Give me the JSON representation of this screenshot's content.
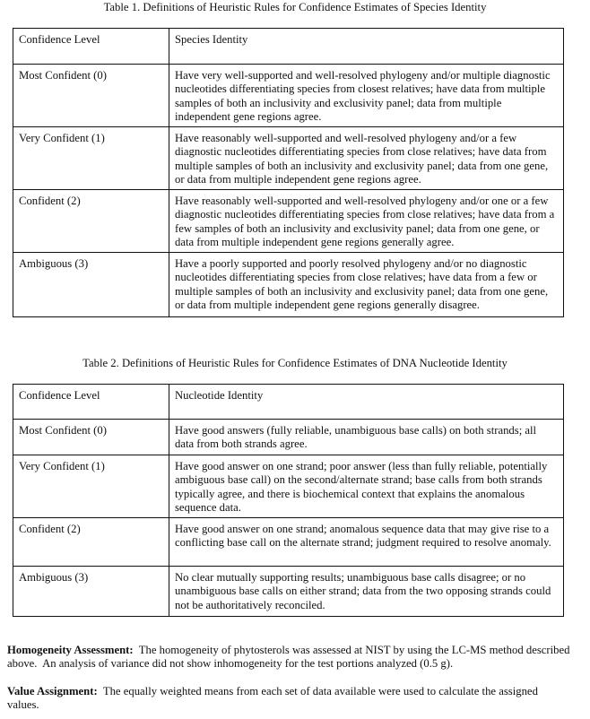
{
  "table1": {
    "caption": "Table 1.  Definitions of Heuristic Rules for Confidence Estimates of Species Identity",
    "headers": [
      "Confidence Level",
      "Species Identity"
    ],
    "rows": [
      [
        "Most Confident (0)",
        "Have very well-supported and well-resolved phylogeny and/or multiple diagnostic nucleotides differentiating species from closest relatives; have data from multiple samples of both an inclusivity and exclusivity panel; data from multiple independent gene regions agree."
      ],
      [
        "Very Confident (1)",
        "Have reasonably well-supported and well-resolved phylogeny and/or a few diagnostic nucleotides differentiating species from close relatives; have data from multiple samples of both an inclusivity and exclusivity panel; data from one gene, or data from multiple independent gene regions agree."
      ],
      [
        "Confident (2)",
        "Have reasonably well-supported and well-resolved phylogeny and/or one or a few diagnostic nucleotides differentiating species from close relatives; have data from a few samples of both an inclusivity and exclusivity panel; data from one gene, or data from multiple independent gene regions generally agree."
      ],
      [
        "Ambiguous (3)",
        "Have a poorly supported and poorly resolved phylogeny and/or no diagnostic nucleotides differentiating species from close relatives; have data from a few or multiple samples of both an inclusivity and exclusivity panel; data from one gene, or data from multiple independent gene regions generally disagree."
      ]
    ]
  },
  "table2": {
    "caption": "Table 2.  Definitions of Heuristic Rules for Confidence Estimates of DNA Nucleotide Identity",
    "headers": [
      "Confidence Level",
      "Nucleotide Identity"
    ],
    "rows": [
      [
        "Most Confident (0)",
        "Have good answers (fully reliable, unambiguous base calls) on both strands; all data from both strands agree."
      ],
      [
        "Very Confident (1)",
        "Have good answer on one strand; poor answer (less than fully reliable, potentially ambiguous base call) on the second/alternate strand; base calls from both strands typically agree, and there is biochemical context that explains the anomalous sequence data."
      ],
      [
        "Confident (2)",
        "Have good answer on one strand; anomalous sequence data that may give rise to a conflicting base call on the alternate strand; judgment required to resolve anomaly."
      ],
      [
        "Ambiguous (3)",
        "No clear mutually supporting results; unambiguous base calls disagree; or no unambiguous base calls on either strand; data from the two opposing strands could not be authoritatively reconciled."
      ]
    ]
  },
  "homogeneity": {
    "heading": "Homogeneity Assessment:",
    "text": "  The homogeneity of phytosterols was assessed at NIST by using the LC-MS method described above.  An analysis of variance did not show inhomogeneity for the test portions analyzed (0.5 g)."
  },
  "value_assignment": {
    "heading": "Value Assignment:",
    "text": "  The equally weighted means from each set of data available were used to calculate the assigned values."
  }
}
